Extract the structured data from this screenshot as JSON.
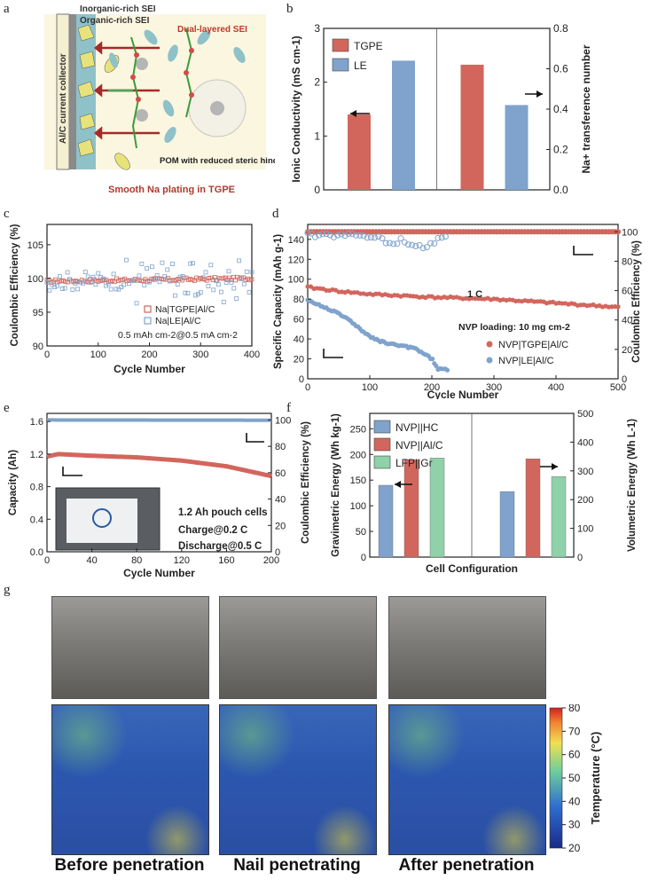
{
  "panels": {
    "a": "a",
    "b": "b",
    "c": "c",
    "d": "d",
    "e": "e",
    "f": "f",
    "g": "g"
  },
  "schematic": {
    "inorganic": "Inorganic-rich SEI",
    "organic": "Organic-rich SEI",
    "dual": "Dual-layered SEI",
    "collector": "Al/C current collector",
    "pom": "POM with reduced steric hindrance",
    "caption": "Smooth Na plating in TGPE",
    "colors": {
      "red": "#c0392b",
      "frame": "#fbf6df"
    }
  },
  "chart_data": [
    {
      "id": "b",
      "type": "bar",
      "categories": [
        "Ionic Conductivity",
        "Na+ transference number"
      ],
      "series": [
        {
          "name": "TGPE",
          "values": [
            1.4,
            0.62
          ],
          "color": "#d2665d"
        },
        {
          "name": "LE",
          "values": [
            2.4,
            0.42
          ],
          "color": "#7fa3cc"
        }
      ],
      "ylabel_left": "Ionic Conductivity (mS cm-1)",
      "ylim_left": [
        0,
        3
      ],
      "yticks_left": [
        "0",
        "1",
        "2",
        "3"
      ],
      "ylabel_right": "Na+ transference number",
      "ylim_right": [
        0,
        0.8
      ],
      "yticks_right": [
        "0.0",
        "0.2",
        "0.4",
        "0.6",
        "0.8"
      ]
    },
    {
      "id": "c",
      "type": "scatter",
      "xlabel": "Cycle Number",
      "ylabel": "Coulombic Efficiency (%)",
      "xlim": [
        0,
        400
      ],
      "ylim": [
        90,
        108
      ],
      "xticks": [
        "0",
        "100",
        "200",
        "300",
        "400"
      ],
      "yticks": [
        "90",
        "95",
        "100",
        "105"
      ],
      "series": [
        {
          "name": "Na|TGPE|Al/C",
          "color": "#d2665d",
          "shape": "open-square",
          "trend": [
            [
              0,
              99.6
            ],
            [
              400,
              100.0
            ]
          ],
          "scatter": 0.25
        },
        {
          "name": "Na|LE|Al/C",
          "color": "#7fa3cc",
          "shape": "open-square",
          "trend": [
            [
              0,
              99.6
            ],
            [
              400,
              100.0
            ]
          ],
          "scatter": 1.4
        }
      ],
      "annotation": "0.5 mAh cm-2@0.5 mA cm-2"
    },
    {
      "id": "d",
      "type": "scatter",
      "xlabel": "Cycle Number",
      "ylabel": "Specific Capacity (mAh g-1)",
      "ylabel_right": "Coulombic Efficiency (%)",
      "xlim": [
        0,
        500
      ],
      "ylim": [
        0,
        155
      ],
      "ylim_right": [
        0,
        105
      ],
      "xticks": [
        "0",
        "100",
        "200",
        "300",
        "400",
        "500"
      ],
      "yticks": [
        "0",
        "20",
        "40",
        "60",
        "80",
        "100",
        "120",
        "140"
      ],
      "yticks_right": [
        "0",
        "20",
        "40",
        "60",
        "80",
        "100"
      ],
      "series": [
        {
          "name": "NVP|TGPE|Al/C",
          "color": "#d2665d",
          "capacity": [
            [
              0,
              92
            ],
            [
              50,
              88
            ],
            [
              100,
              85
            ],
            [
              200,
              82
            ],
            [
              300,
              80
            ],
            [
              400,
              76
            ],
            [
              500,
              72
            ]
          ],
          "ce": [
            [
              0,
              100
            ],
            [
              500,
              100
            ]
          ]
        },
        {
          "name": "NVP|LE|Al/C",
          "color": "#7fa3cc",
          "capacity": [
            [
              0,
              79
            ],
            [
              25,
              72
            ],
            [
              50,
              66
            ],
            [
              75,
              55
            ],
            [
              100,
              42
            ],
            [
              125,
              36
            ],
            [
              150,
              33
            ],
            [
              175,
              30
            ],
            [
              200,
              20
            ],
            [
              210,
              10
            ],
            [
              225,
              9
            ]
          ],
          "ce": [
            [
              0,
              98
            ],
            [
              100,
              97
            ],
            [
              150,
              93
            ],
            [
              175,
              88
            ],
            [
              200,
              92
            ],
            [
              225,
              98
            ]
          ]
        }
      ],
      "annotations": [
        "1 C",
        "NVP loading: 10 mg cm-2"
      ]
    },
    {
      "id": "e",
      "type": "line",
      "xlabel": "Cycle Number",
      "ylabel": "Capacity (Ah)",
      "ylabel_right": "Coulombic Efficiency (%)",
      "xlim": [
        0,
        200
      ],
      "ylim": [
        0,
        1.7
      ],
      "ylim_right": [
        0,
        105
      ],
      "xticks": [
        "0",
        "40",
        "80",
        "120",
        "160",
        "200"
      ],
      "yticks": [
        "0.0",
        "0.4",
        "0.8",
        "1.2",
        "1.6"
      ],
      "yticks_right": [
        "0",
        "20",
        "40",
        "60",
        "80",
        "100"
      ],
      "series": [
        {
          "name": "Capacity",
          "color": "#d2665d",
          "values": [
            [
              0,
              1.17
            ],
            [
              10,
              1.2
            ],
            [
              40,
              1.18
            ],
            [
              80,
              1.16
            ],
            [
              120,
              1.12
            ],
            [
              160,
              1.05
            ],
            [
              200,
              0.93
            ]
          ]
        },
        {
          "name": "CE",
          "color": "#7fa3cc",
          "values": [
            [
              0,
              100
            ],
            [
              200,
              99.8
            ]
          ]
        }
      ],
      "annotations": [
        "1.2 Ah  pouch cells",
        "Charge@0.2 C",
        "Discharge@0.5 C"
      ]
    },
    {
      "id": "f",
      "type": "bar",
      "xlabel": "Cell Configuration",
      "ylabel_left": "Gravimetric Energy (Wh kg-1)",
      "ylim_left": [
        0,
        280
      ],
      "yticks_left": [
        "0",
        "50",
        "100",
        "150",
        "200",
        "250"
      ],
      "ylabel_right": "Volumetric Energy (Wh L-1)",
      "ylim_right": [
        0,
        500
      ],
      "yticks_right": [
        "0",
        "100",
        "200",
        "300",
        "400",
        "500"
      ],
      "series": [
        {
          "name": "NVP||HC",
          "color": "#7fa3cc",
          "values": [
            140,
            228
          ]
        },
        {
          "name": "NVP||Al/C",
          "color": "#d2665d",
          "values": [
            190,
            342
          ]
        },
        {
          "name": "LFP||Gr",
          "color": "#8fd1a8",
          "values": [
            193,
            280
          ]
        }
      ]
    }
  ],
  "thermal": {
    "captions": [
      "Before penetration",
      "Nail penetrating",
      "After penetration"
    ],
    "colorbar_label": "Temperature (°C)",
    "colorbar_ticks": [
      "20",
      "30",
      "40",
      "50",
      "60",
      "70",
      "80"
    ]
  }
}
